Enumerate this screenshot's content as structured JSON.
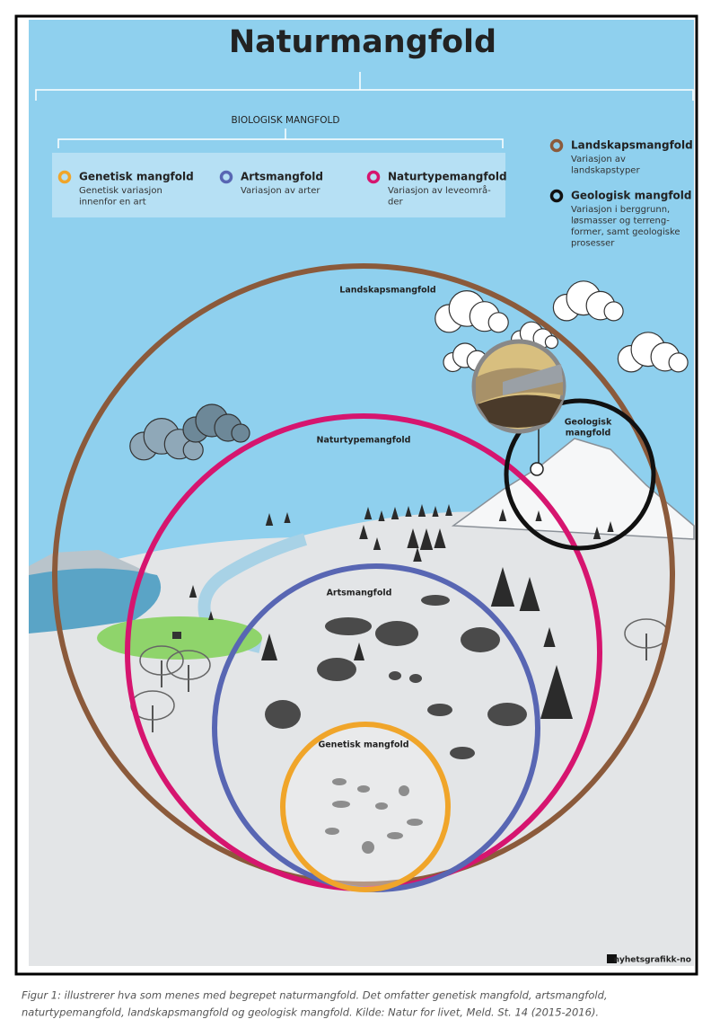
{
  "header": {
    "title": "Naturmangfold",
    "group_label": "BIOLOGISK MANGFOLD"
  },
  "legend": [
    {
      "title": "Genetisk mangfold",
      "lines": [
        "Genetisk variasjon",
        "innenfor en art"
      ]
    },
    {
      "title": "Artsmangfold",
      "lines": [
        "Variasjon av arter"
      ]
    },
    {
      "title": "Naturtypemangfold",
      "lines": [
        "Variasjon av leveområ-",
        "der"
      ]
    },
    {
      "title": "Landskapsmangfold",
      "lines": [
        "Variasjon av",
        "landskapstyper"
      ]
    },
    {
      "title": "Geologisk mangfold",
      "lines": [
        "Variasjon i berggrunn,",
        "løsmasser og terreng-",
        "former, samt geologiske",
        "prosesser"
      ]
    }
  ],
  "circles": {
    "landskap": "Landskapsmangfold",
    "naturtype": "Naturtypemangfold",
    "arts": "Artsmangfold",
    "genetisk": "Genetisk mangfold",
    "geologisk": [
      "Geologisk",
      "mangfold"
    ]
  },
  "credit": "nyhetsgrafikk-no",
  "caption": [
    "Figur 1: illustrerer hva som menes med begrepet naturmangfold. Det omfatter genetisk mangfold, artsmangfold,",
    "naturtypemangfold, landskapsmangfold og geologisk mangfold. Kilde: Natur for livet, Meld. St. 14 (2015-2016)."
  ]
}
